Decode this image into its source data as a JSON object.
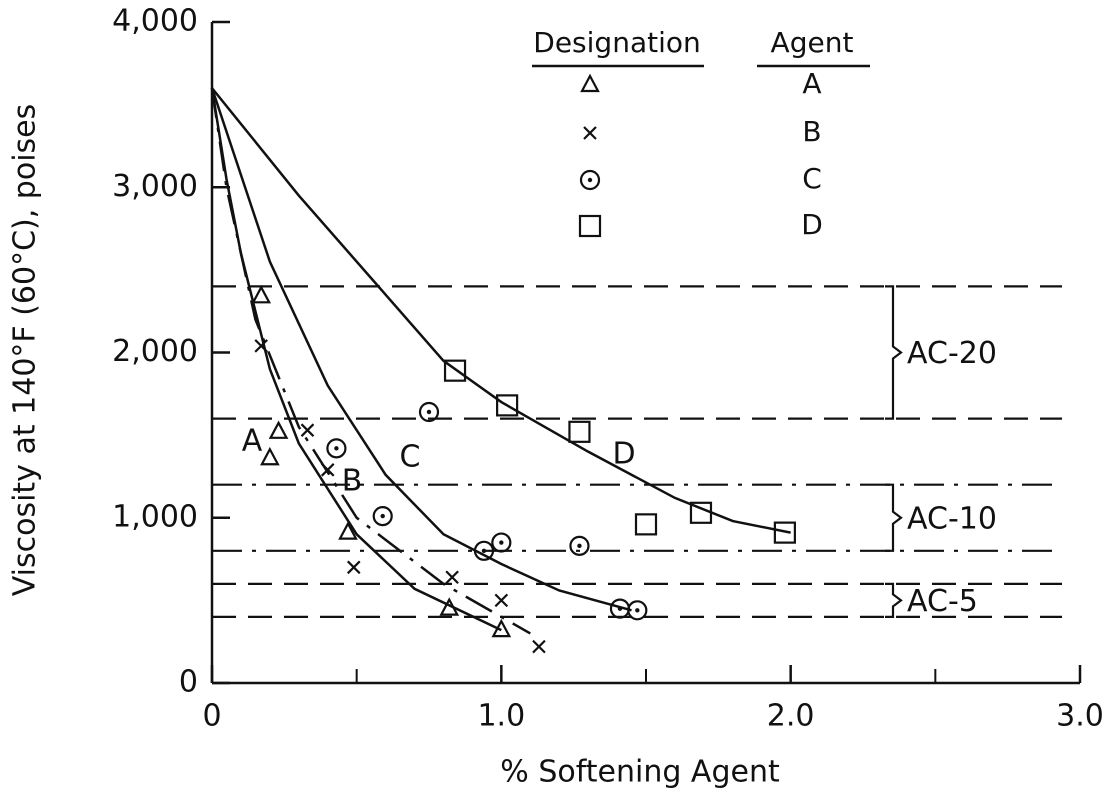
{
  "chart_data": {
    "type": "scatter",
    "x_label": "% Softening Agent",
    "y_label": "Viscosity at 140°F (60°C), poises",
    "legend_headers": [
      "Designation",
      "Agent"
    ],
    "xlim": [
      0,
      3
    ],
    "ylim": [
      0,
      4000
    ],
    "xticks": [
      0,
      {
        "value": 1,
        "label": "1.0"
      },
      {
        "value": 2,
        "label": "2.0"
      },
      {
        "value": 3,
        "label": "3.0"
      }
    ],
    "xminor_ticks": [
      0.5,
      1.5,
      2.5
    ],
    "yticks": [
      0,
      {
        "value": 1000,
        "label": "1,000"
      },
      {
        "value": 2000,
        "label": "2,000"
      },
      {
        "value": 3000,
        "label": "3,000"
      },
      {
        "value": 4000,
        "label": "4,000"
      }
    ],
    "color": "#111111",
    "bands": [
      {
        "label": "AC-20",
        "range": [
          1600,
          2400
        ],
        "dash": "dashed"
      },
      {
        "label": "AC-10",
        "range": [
          800,
          1200
        ],
        "dash": "dashdot"
      },
      {
        "label": "AC-5",
        "range": [
          400,
          600
        ],
        "dash": "dashed"
      }
    ],
    "series": [
      {
        "name": "A",
        "marker": "triangle",
        "x": [
          0.17,
          0.23,
          0.2,
          0.47,
          0.82,
          1.0
        ],
        "values": [
          2340,
          1520,
          1360,
          910,
          450,
          320
        ],
        "curve": {
          "dash": "solid",
          "x": [
            0,
            0.05,
            0.1,
            0.2,
            0.3,
            0.5,
            0.7,
            1.0
          ],
          "y": [
            3600,
            3050,
            2600,
            1900,
            1450,
            900,
            570,
            320
          ]
        }
      },
      {
        "name": "B",
        "marker": "cross",
        "x": [
          0.17,
          0.33,
          0.4,
          0.49,
          0.83,
          1.0,
          1.13
        ],
        "values": [
          2040,
          1530,
          1290,
          700,
          640,
          500,
          220
        ],
        "curve": {
          "dash": "dashdot",
          "x": [
            0,
            0.05,
            0.15,
            0.3,
            0.5,
            0.8,
            1.1
          ],
          "y": [
            3600,
            3000,
            2200,
            1550,
            1000,
            600,
            300
          ]
        }
      },
      {
        "name": "C",
        "marker": "circle-dot",
        "x": [
          0.43,
          0.59,
          0.75,
          0.94,
          1.0,
          1.27,
          1.41,
          1.47
        ],
        "values": [
          1420,
          1010,
          1640,
          800,
          850,
          830,
          450,
          440
        ],
        "curve": {
          "dash": "solid",
          "x": [
            0,
            0.2,
            0.4,
            0.6,
            0.8,
            1.0,
            1.2,
            1.45
          ],
          "y": [
            3600,
            2550,
            1800,
            1260,
            900,
            720,
            560,
            440
          ]
        }
      },
      {
        "name": "D",
        "marker": "square",
        "x": [
          0.84,
          1.02,
          1.27,
          1.5,
          1.69,
          1.98
        ],
        "values": [
          1890,
          1680,
          1520,
          960,
          1030,
          910
        ],
        "curve": {
          "dash": "solid",
          "x": [
            0,
            0.3,
            0.6,
            0.8,
            1.0,
            1.3,
            1.6,
            1.8,
            2.0
          ],
          "y": [
            3600,
            2950,
            2350,
            1950,
            1700,
            1400,
            1120,
            980,
            910
          ]
        }
      }
    ]
  }
}
